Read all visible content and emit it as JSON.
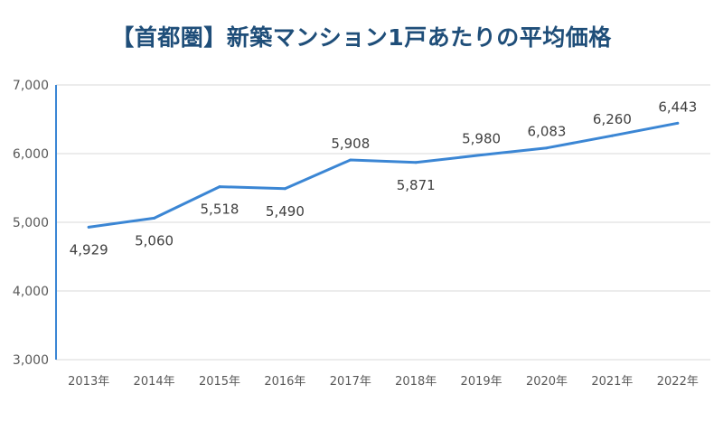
{
  "chart_data": {
    "type": "line",
    "title": "【首都圏】新築マンション1戸あたりの平均価格",
    "xlabel": "",
    "ylabel": "",
    "categories": [
      "2013年",
      "2014年",
      "2015年",
      "2016年",
      "2017年",
      "2018年",
      "2019年",
      "2020年",
      "2021年",
      "2022年"
    ],
    "values": [
      4929,
      5060,
      5518,
      5490,
      5908,
      5871,
      5980,
      6083,
      6260,
      6443
    ],
    "data_labels": [
      "4,929",
      "5,060",
      "5,518",
      "5,490",
      "5,908",
      "5,871",
      "5,980",
      "6,083",
      "6,260",
      "6,443"
    ],
    "label_position": [
      "below",
      "below",
      "below",
      "below",
      "above",
      "below",
      "above",
      "above",
      "above",
      "above"
    ],
    "ylim": [
      3000,
      7000
    ],
    "yticks": [
      3000,
      4000,
      5000,
      6000,
      7000
    ],
    "ytick_labels": [
      "3,000",
      "4,000",
      "5,000",
      "6,000",
      "7,000"
    ],
    "grid": true,
    "legend": "none",
    "colors": {
      "line": "#3b86d4",
      "grid": "#d9d9d9",
      "axis": "#3b86d4",
      "title": "#1f4e79"
    }
  }
}
